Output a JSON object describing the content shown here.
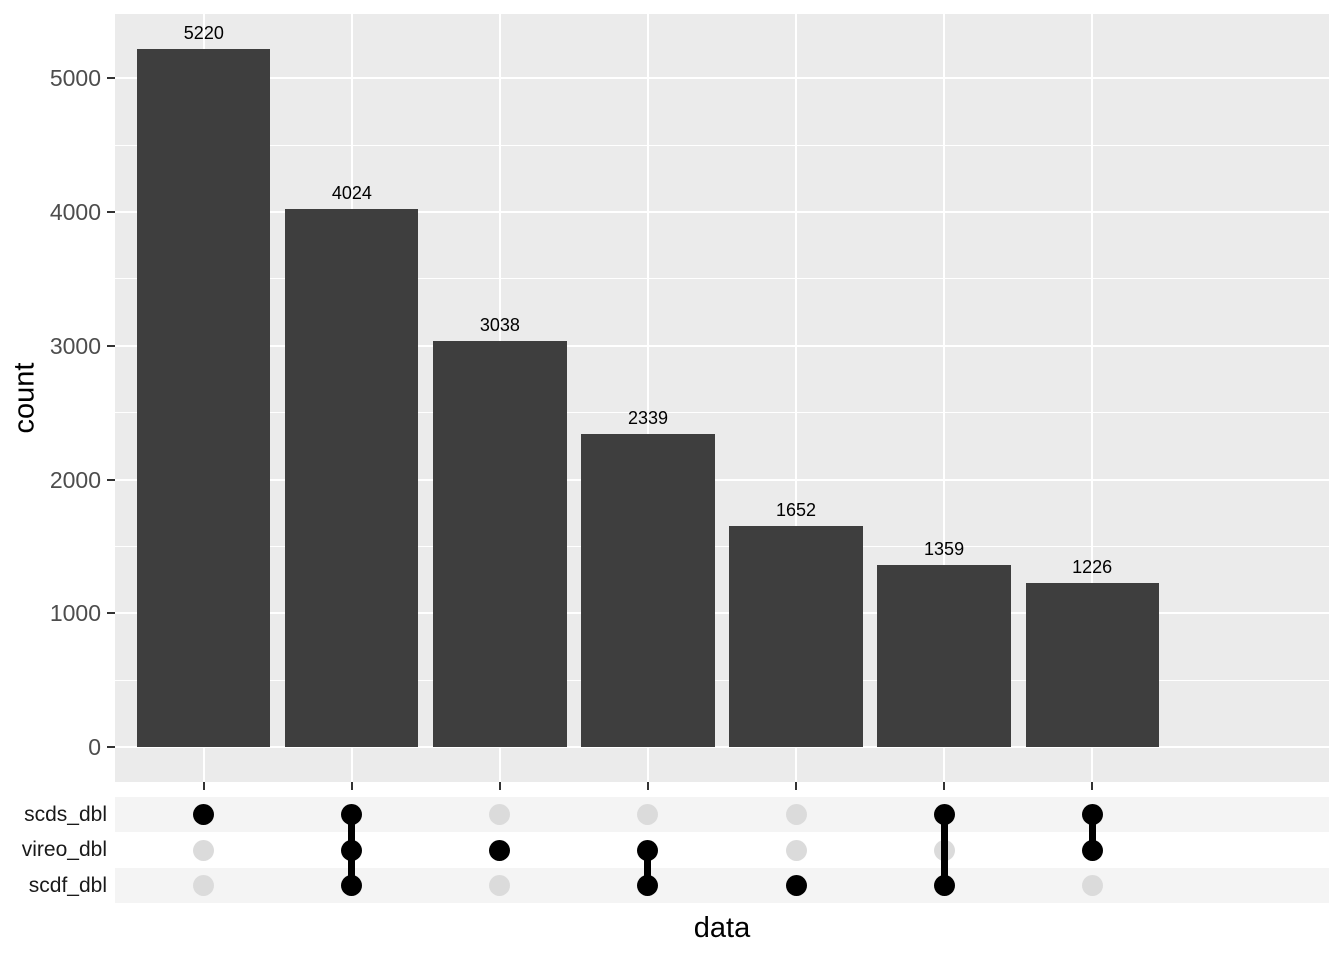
{
  "figure": {
    "background": "#FFFFFF",
    "panel_background": "#EBEBEB",
    "gridline_color": "#FFFFFF",
    "bar_color": "#3E3E3E",
    "bar_label_color": "#000000",
    "axis_text_color": "#4D4D4D",
    "axis_title_color": "#000000",
    "tick_color": "#333333",
    "matrix_stripe_color": "#F4F4F4",
    "matrix_active_dot_color": "#000000",
    "matrix_inactive_dot_color": "#DBDBDB",
    "matrix_label_color": "#1A1A1A"
  },
  "chart_data": {
    "type": "bar",
    "subtype": "upset-plot",
    "title": "",
    "xlabel": "data",
    "ylabel": "count",
    "ylim": [
      0,
      5481
    ],
    "grid": true,
    "legend": "none",
    "y_major_ticks": [
      0,
      1000,
      2000,
      3000,
      4000,
      5000
    ],
    "y_major_tick_labels": [
      "0",
      "1000",
      "2000",
      "3000",
      "4000",
      "5000"
    ],
    "y_minor_ticks": [
      500,
      1500,
      2500,
      3500,
      4500
    ],
    "set_rows": [
      "scds_dbl",
      "vireo_dbl",
      "scdf_dbl"
    ],
    "categories": [
      "scds_dbl",
      "scds_dbl&vireo_dbl&scdf_dbl",
      "vireo_dbl",
      "vireo_dbl&scdf_dbl",
      "scdf_dbl",
      "scds_dbl&scdf_dbl",
      "scds_dbl&vireo_dbl"
    ],
    "values": [
      5220,
      4024,
      3038,
      2339,
      1652,
      1359,
      1226
    ],
    "bar_labels": [
      "5220",
      "4024",
      "3038",
      "2339",
      "1652",
      "1359",
      "1226"
    ],
    "combinations": [
      {
        "value": 5220,
        "label": "5220",
        "membership": [
          true,
          false,
          false
        ]
      },
      {
        "value": 4024,
        "label": "4024",
        "membership": [
          true,
          true,
          true
        ]
      },
      {
        "value": 3038,
        "label": "3038",
        "membership": [
          false,
          true,
          false
        ]
      },
      {
        "value": 2339,
        "label": "2339",
        "membership": [
          false,
          true,
          true
        ]
      },
      {
        "value": 1652,
        "label": "1652",
        "membership": [
          false,
          false,
          true
        ]
      },
      {
        "value": 1359,
        "label": "1359",
        "membership": [
          true,
          false,
          true
        ]
      },
      {
        "value": 1226,
        "label": "1226",
        "membership": [
          true,
          true,
          false
        ]
      }
    ]
  }
}
